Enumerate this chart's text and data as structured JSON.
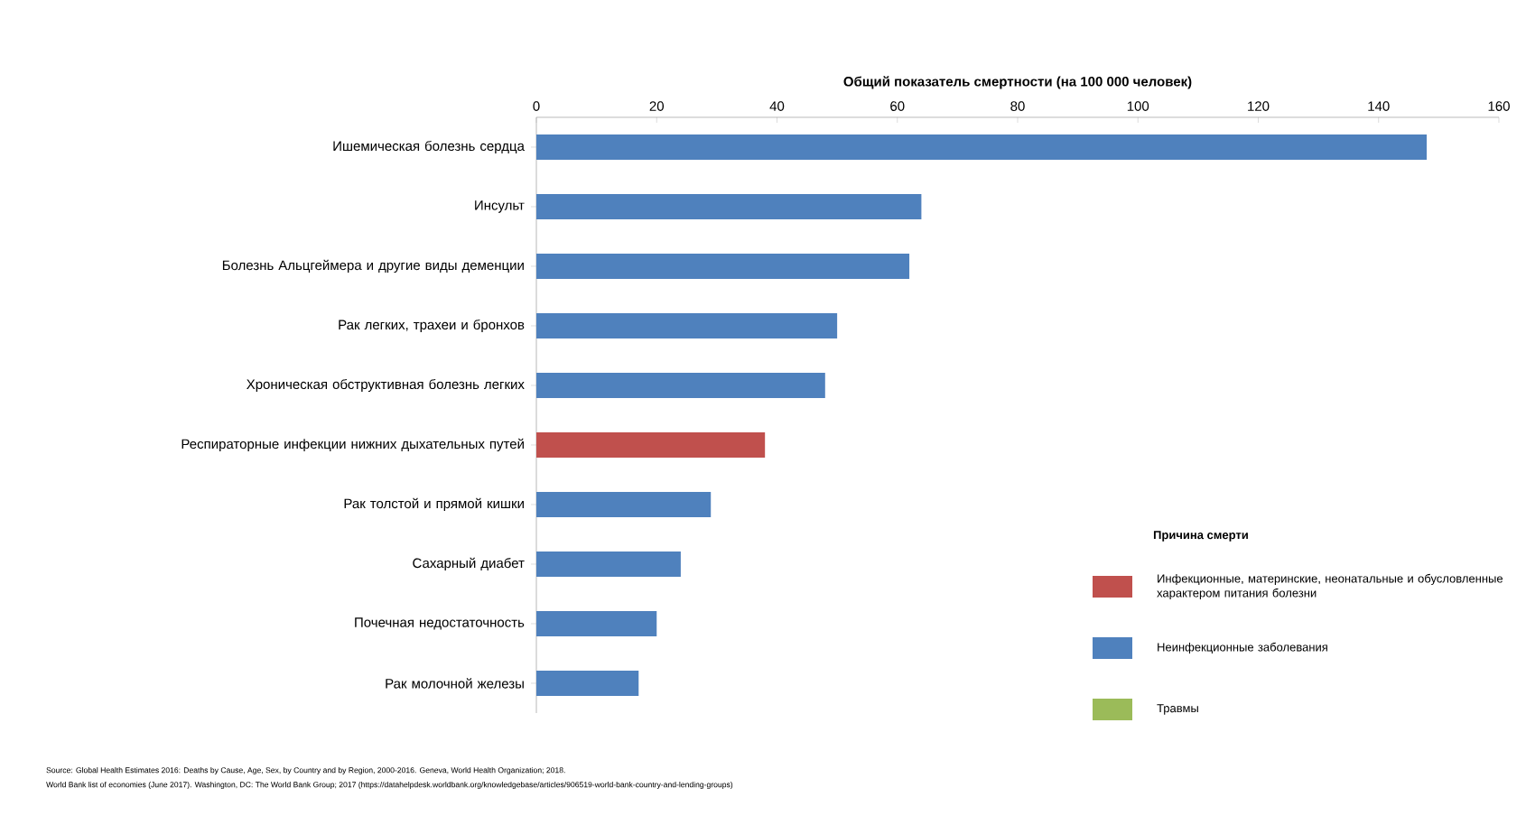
{
  "chart_data": {
    "type": "bar",
    "orientation": "horizontal",
    "xlabel": "Общий показатель смертности (на 100 000 человек)",
    "categories": [
      "Ишемическая болезнь сердца",
      "Инсульт",
      "Болезнь Альцгеймера и другие виды деменции",
      "Рак легких, трахеи и бронхов",
      "Хроническая обструктивная болезнь легких",
      "Респираторные инфекции нижних дыхательных путей",
      "Рак толстой и прямой кишки",
      "Сахарный диабет",
      "Почечная недостаточность",
      "Рак молочной железы"
    ],
    "series": [
      {
        "name": "Инфекционные, материнские, неонатальные и обусловленные характером питания болезни",
        "color": "#c0504d",
        "values": [
          null,
          null,
          null,
          null,
          null,
          38,
          null,
          null,
          null,
          null
        ]
      },
      {
        "name": "Неинфекционные заболевания",
        "color": "#4f81bd",
        "values": [
          148,
          64,
          62,
          50,
          48,
          null,
          29,
          24,
          20,
          17
        ]
      },
      {
        "name": "Травмы",
        "color": "#9bbb59",
        "values": [
          null,
          null,
          null,
          null,
          null,
          null,
          null,
          null,
          null,
          null
        ]
      }
    ],
    "xlim": [
      0,
      160
    ],
    "xticks": [
      0,
      20,
      40,
      60,
      80,
      100,
      120,
      140,
      160
    ],
    "legend": "bottom right",
    "legend_title": "Причина смерти",
    "annotations": [
      "Source: Global Health Estimates 2016: Deaths by Cause, Age, Sex, by Country and by Region, 2000-2016. Geneva, World Health Organization; 2018.",
      "World Bank list of economies (June 2017). Washington, DC: The World Bank Group; 2017 (https://datahelpdesk.worldbank.org/knowledgebase/articles/906519-world-bank-country-and-lending-groups)"
    ]
  }
}
